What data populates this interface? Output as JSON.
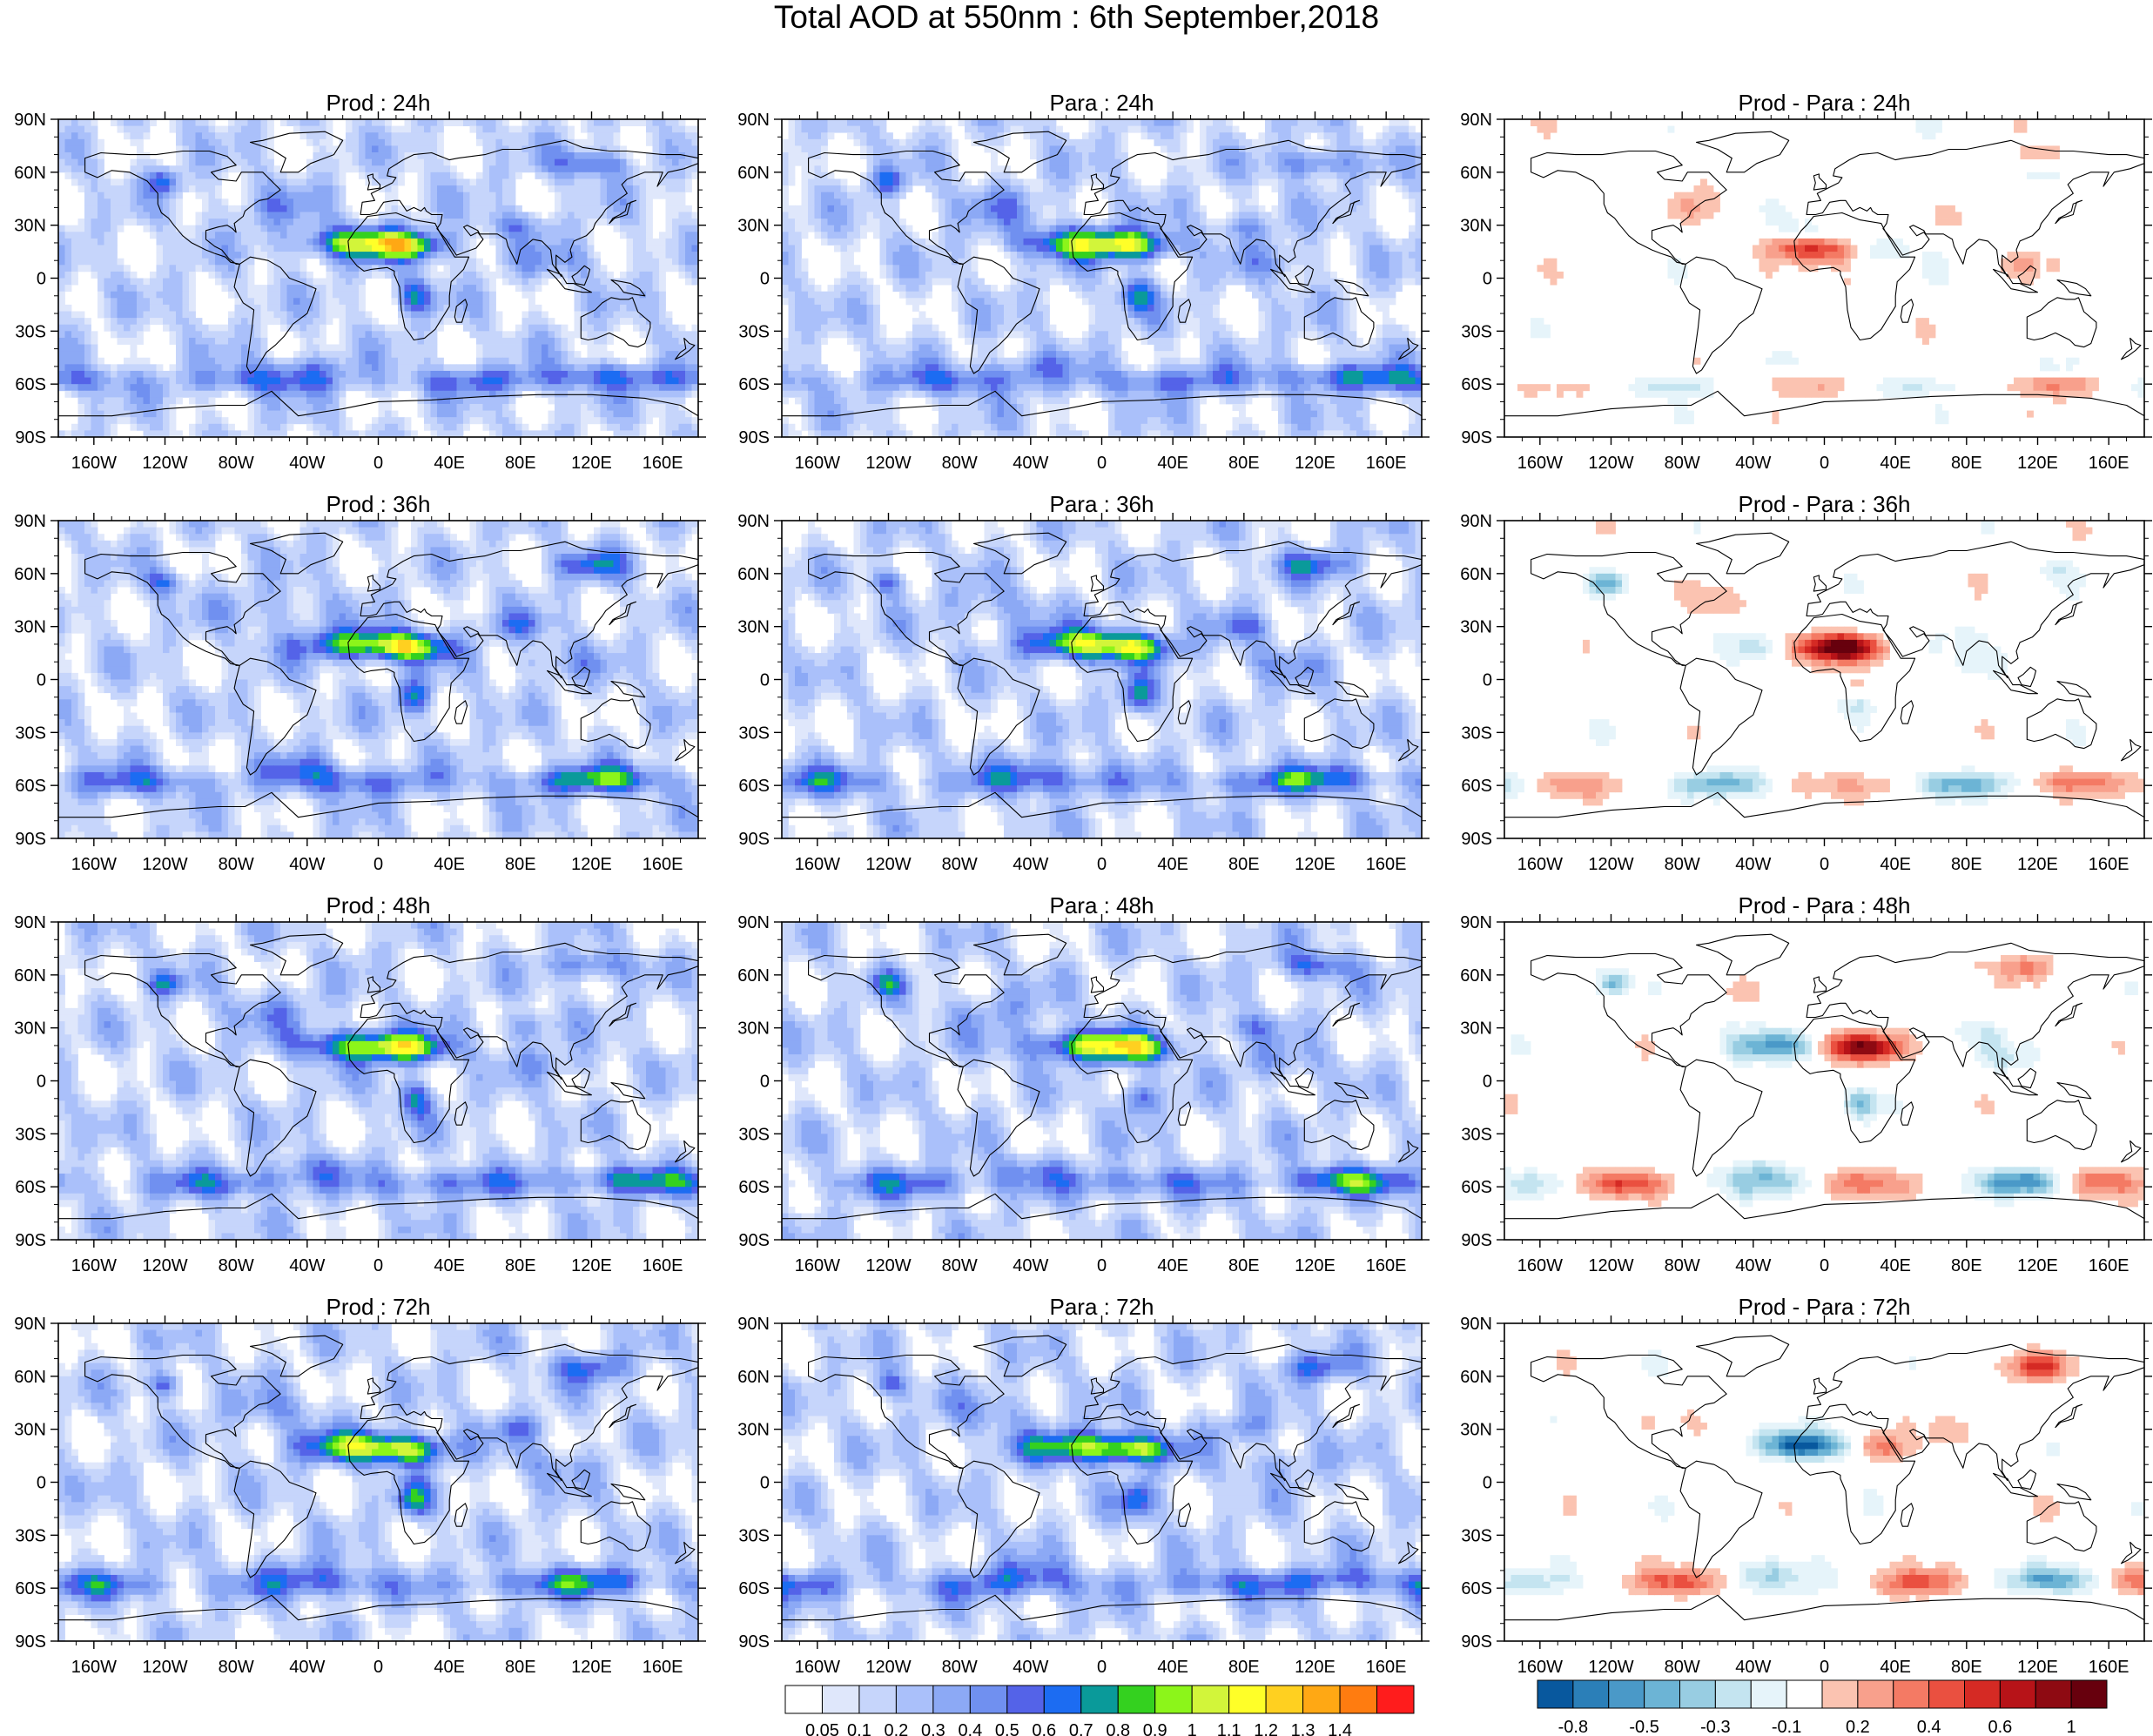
{
  "title": "Total AOD at 550nm : 6th September,2018",
  "lat_labels": [
    "90N",
    "60N",
    "30N",
    "0",
    "30S",
    "60S",
    "90S"
  ],
  "lon_labels": [
    "160W",
    "120W",
    "80W",
    "40W",
    "0",
    "40E",
    "80E",
    "120E",
    "160E"
  ],
  "panels": [
    [
      {
        "title": "Prod : 24h",
        "kind": "aod",
        "seed": 11
      },
      {
        "title": "Para : 24h",
        "kind": "aod",
        "seed": 12
      },
      {
        "title": "Prod - Para : 24h",
        "kind": "diff",
        "seed": 13
      }
    ],
    [
      {
        "title": "Prod : 36h",
        "kind": "aod",
        "seed": 21
      },
      {
        "title": "Para : 36h",
        "kind": "aod",
        "seed": 22
      },
      {
        "title": "Prod - Para : 36h",
        "kind": "diff",
        "seed": 23
      }
    ],
    [
      {
        "title": "Prod : 48h",
        "kind": "aod",
        "seed": 31
      },
      {
        "title": "Para : 48h",
        "kind": "aod",
        "seed": 32
      },
      {
        "title": "Prod - Para : 48h",
        "kind": "diff",
        "seed": 33
      }
    ],
    [
      {
        "title": "Prod : 72h",
        "kind": "aod",
        "seed": 41
      },
      {
        "title": "Para : 72h",
        "kind": "aod",
        "seed": 42
      },
      {
        "title": "Prod - Para : 72h",
        "kind": "diff",
        "seed": 43
      }
    ]
  ],
  "aod_colorbar": {
    "labels": [
      "0.05",
      "0.1",
      "0.2",
      "0.3",
      "0.4",
      "0.5",
      "0.6",
      "0.7",
      "0.8",
      "0.9",
      "1",
      "1.1",
      "1.2",
      "1.3",
      "1.4"
    ],
    "colors": [
      "#ffffff",
      "#dfe7fb",
      "#c6d5fb",
      "#aac0fa",
      "#8ca9f5",
      "#7090f0",
      "#5463e8",
      "#1c6cf2",
      "#0a9a9a",
      "#34d11f",
      "#8cf51a",
      "#d2f53a",
      "#ffff28",
      "#ffd020",
      "#ffa814",
      "#ff7c10",
      "#ff1c1c"
    ]
  },
  "diff_colorbar": {
    "labels": [
      "-0.8",
      "-0.5",
      "-0.3",
      "-0.1",
      "0.2",
      "0.4",
      "0.6",
      "1"
    ],
    "colors": [
      "#08589e",
      "#2b7fb8",
      "#4a99c8",
      "#6cb4d5",
      "#98cde2",
      "#c4e4f0",
      "#e6f4fa",
      "#ffffff",
      "#fbc3b1",
      "#f8a08c",
      "#f47a64",
      "#ea5040",
      "#d52a24",
      "#b71318",
      "#8e0a12",
      "#67000d"
    ]
  }
}
